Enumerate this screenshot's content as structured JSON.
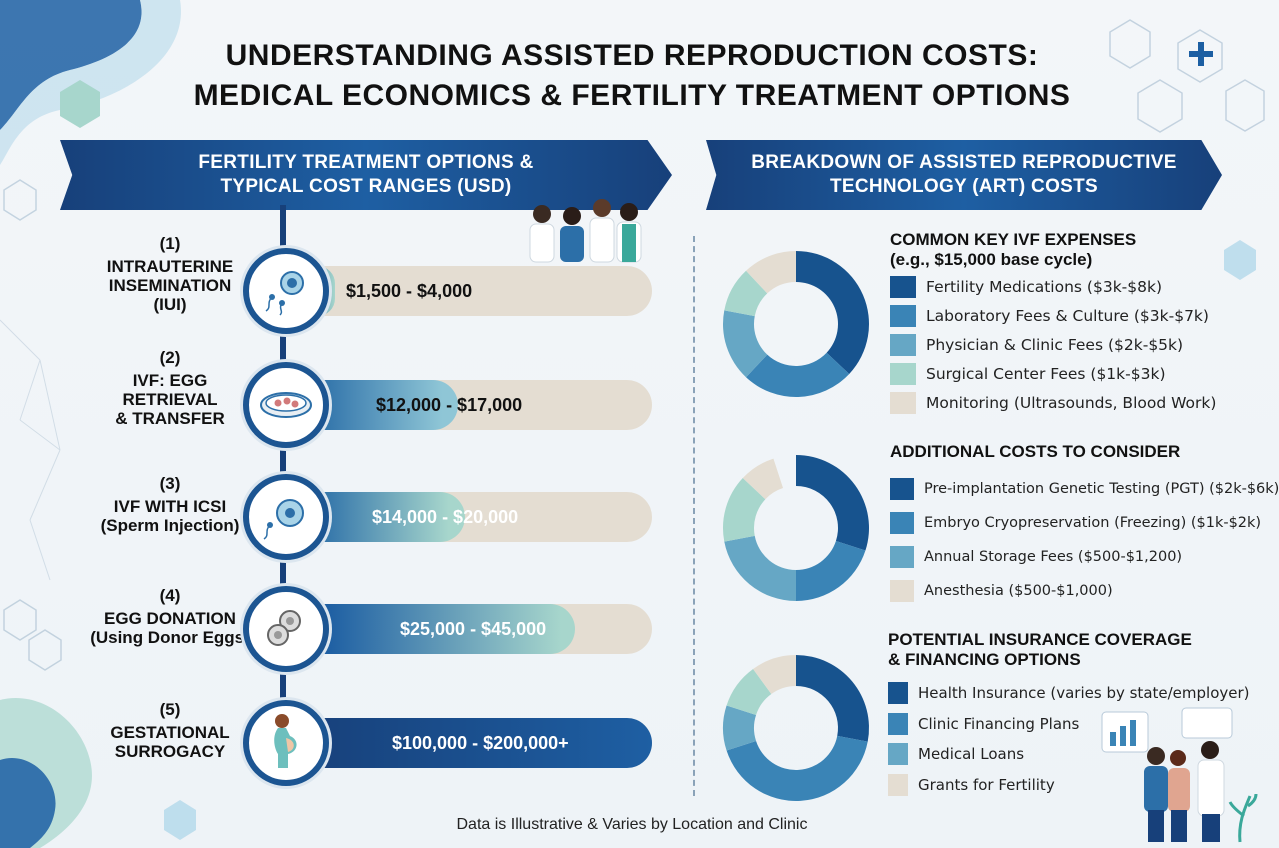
{
  "title": {
    "line1": "UNDERSTANDING ASSISTED REPRODUCTION COSTS:",
    "line2": "MEDICAL ECONOMICS & FERTILITY TREATMENT OPTIONS"
  },
  "left_panel": {
    "banner_line1": "FERTILITY TREATMENT OPTIONS &",
    "banner_line2": "TYPICAL COST RANGES (USD)",
    "treatments": [
      {
        "num": "(1)",
        "line1": "INTRAUTERINE",
        "line2": "INSEMINATION",
        "line3": "(IUI)",
        "cost": "$1,500 - $4,000",
        "icon": "sperm-egg-icon",
        "fill_fraction": 0.1
      },
      {
        "num": "(2)",
        "line1": "IVF: EGG",
        "line2": "RETRIEVAL",
        "line3": "& TRANSFER",
        "cost": "$12,000 - $17,000",
        "icon": "petri-dish-icon",
        "fill_fraction": 0.45
      },
      {
        "num": "(3)",
        "line1": "IVF WITH ICSI",
        "line2": "(Sperm Injection)",
        "cost": "$14,000 - $20,000",
        "icon": "sperm-injection-icon",
        "fill_fraction": 0.47
      },
      {
        "num": "(4)",
        "line1": "EGG DONATION",
        "line2": "(Using Donor Eggs)",
        "cost": "$25,000 - $45,000",
        "icon": "egg-cells-icon",
        "fill_fraction": 0.78
      },
      {
        "num": "(5)",
        "line1": "GESTATIONAL",
        "line2": "SURROGACY",
        "cost": "$100,000 - $200,000+",
        "icon": "pregnant-woman-icon",
        "fill_fraction": 1.0
      }
    ]
  },
  "right_panel": {
    "banner_line1": "BREAKDOWN OF ASSISTED REPRODUCTIVE",
    "banner_line2": "TECHNOLOGY (ART) COSTS",
    "sections": [
      {
        "title_line1": "COMMON KEY IVF EXPENSES",
        "title_line2": "(e.g., $15,000 base cycle)",
        "items": [
          {
            "label": "Fertility Medications ($3k-$8k)",
            "color": "#17538e",
            "share": 0.37
          },
          {
            "label": "Laboratory Fees & Culture ($3k-$7k)",
            "color": "#3a84b6",
            "share": 0.25
          },
          {
            "label": "Physician & Clinic Fees ($2k-$5k)",
            "color": "#66a7c5",
            "share": 0.16
          },
          {
            "label": "Surgical Center Fees ($1k-$3k)",
            "color": "#a7d6cc",
            "share": 0.1
          },
          {
            "label": "Monitoring (Ultrasounds, Blood Work)",
            "color": "#e4ddd2",
            "share": 0.12
          }
        ]
      },
      {
        "title_line1": "ADDITIONAL COSTS TO CONSIDER",
        "items": [
          {
            "label": "Pre-implantation Genetic Testing (PGT) ($2k-$6k)",
            "color": "#17538e",
            "share": 0.3
          },
          {
            "label": "Embryo Cryopreservation (Freezing) ($1k-$2k)",
            "color": "#3a84b6",
            "share": 0.2
          },
          {
            "label": "Annual Storage Fees ($500-$1,200)",
            "color": "#66a7c5",
            "share": 0.22
          },
          {
            "label": "",
            "color": "#a7d6cc",
            "share": 0.15
          },
          {
            "label": "Anesthesia ($500-$1,000)",
            "color": "#e4ddd2",
            "share": 0.08
          }
        ]
      },
      {
        "title_line1": "POTENTIAL INSURANCE COVERAGE",
        "title_line2": "& FINANCING OPTIONS",
        "items": [
          {
            "label": "Health Insurance (varies by state/employer)",
            "color": "#17538e",
            "share": 0.28
          },
          {
            "label": "Clinic Financing Plans",
            "color": "#3a84b6",
            "share": 0.42
          },
          {
            "label": "Medical Loans",
            "color": "#66a7c5",
            "share": 0.1
          },
          {
            "label": "",
            "color": "#a7d6cc",
            "share": 0.1
          },
          {
            "label": "Grants for Fertility",
            "color": "#e4ddd2",
            "share": 0.1
          }
        ]
      }
    ]
  },
  "footer": "Data is Illustrative & Varies by Location and Clinic"
}
